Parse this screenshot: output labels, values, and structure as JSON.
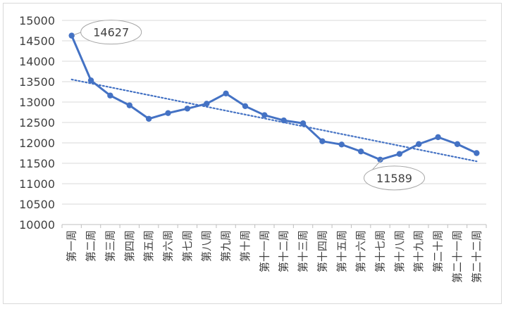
{
  "chart_data": {
    "type": "line",
    "categories": [
      "第一周",
      "第二周",
      "第三周",
      "第四周",
      "第五周",
      "第六周",
      "第七周",
      "第八周",
      "第九周",
      "第十周",
      "第十一周",
      "第十二周",
      "第十三周",
      "第十四周",
      "第十五周",
      "第十六周",
      "第十七周",
      "第十八周",
      "第十九周",
      "第二十周",
      "第二十一周",
      "第二十二周"
    ],
    "values": [
      14627,
      13530,
      13160,
      12920,
      12590,
      12730,
      12840,
      12960,
      13210,
      12900,
      12680,
      12550,
      12480,
      12040,
      11960,
      11790,
      11589,
      11730,
      11970,
      12140,
      11970,
      11750
    ],
    "ylim": [
      10000,
      15000
    ],
    "yticks": [
      10000,
      10500,
      11000,
      11500,
      12000,
      12500,
      13000,
      13500,
      14000,
      14500,
      15000
    ],
    "trendline": {
      "type": "linear",
      "style": "dotted",
      "color": "#4472c4"
    },
    "annotations": [
      {
        "text": "14627",
        "category": "第一周",
        "value": 14627
      },
      {
        "text": "11589",
        "category": "第十七周",
        "value": 11589
      }
    ],
    "series_color": "#4472c4",
    "grid": true,
    "legend": "none"
  }
}
